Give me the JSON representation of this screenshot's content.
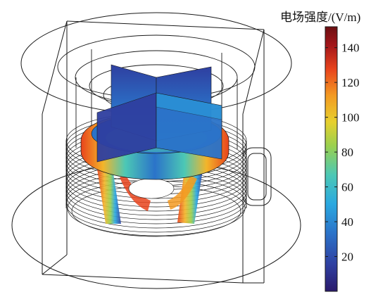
{
  "figure": {
    "description_visible": "Simulated electric field strength over a cylindrical resonator geometry",
    "legend_title": "电场强度/(V/m)",
    "colorbar": {
      "min": 0,
      "max": 152,
      "ticks": [
        140,
        120,
        100,
        80,
        60,
        40,
        20
      ],
      "colors": [
        "#2a1a6b",
        "#2f3fa0",
        "#2b73c9",
        "#2aa8e0",
        "#4cc8b5",
        "#9ad04e",
        "#e7d02e",
        "#f39a22",
        "#e8431c",
        "#a4161a",
        "#6b0f12"
      ]
    }
  },
  "colors": {
    "wire": "#1a1a1a",
    "hot": "#e23a1f",
    "warm": "#f3b52a",
    "cool": "#2c5fb6",
    "cold": "#2a3d93"
  }
}
